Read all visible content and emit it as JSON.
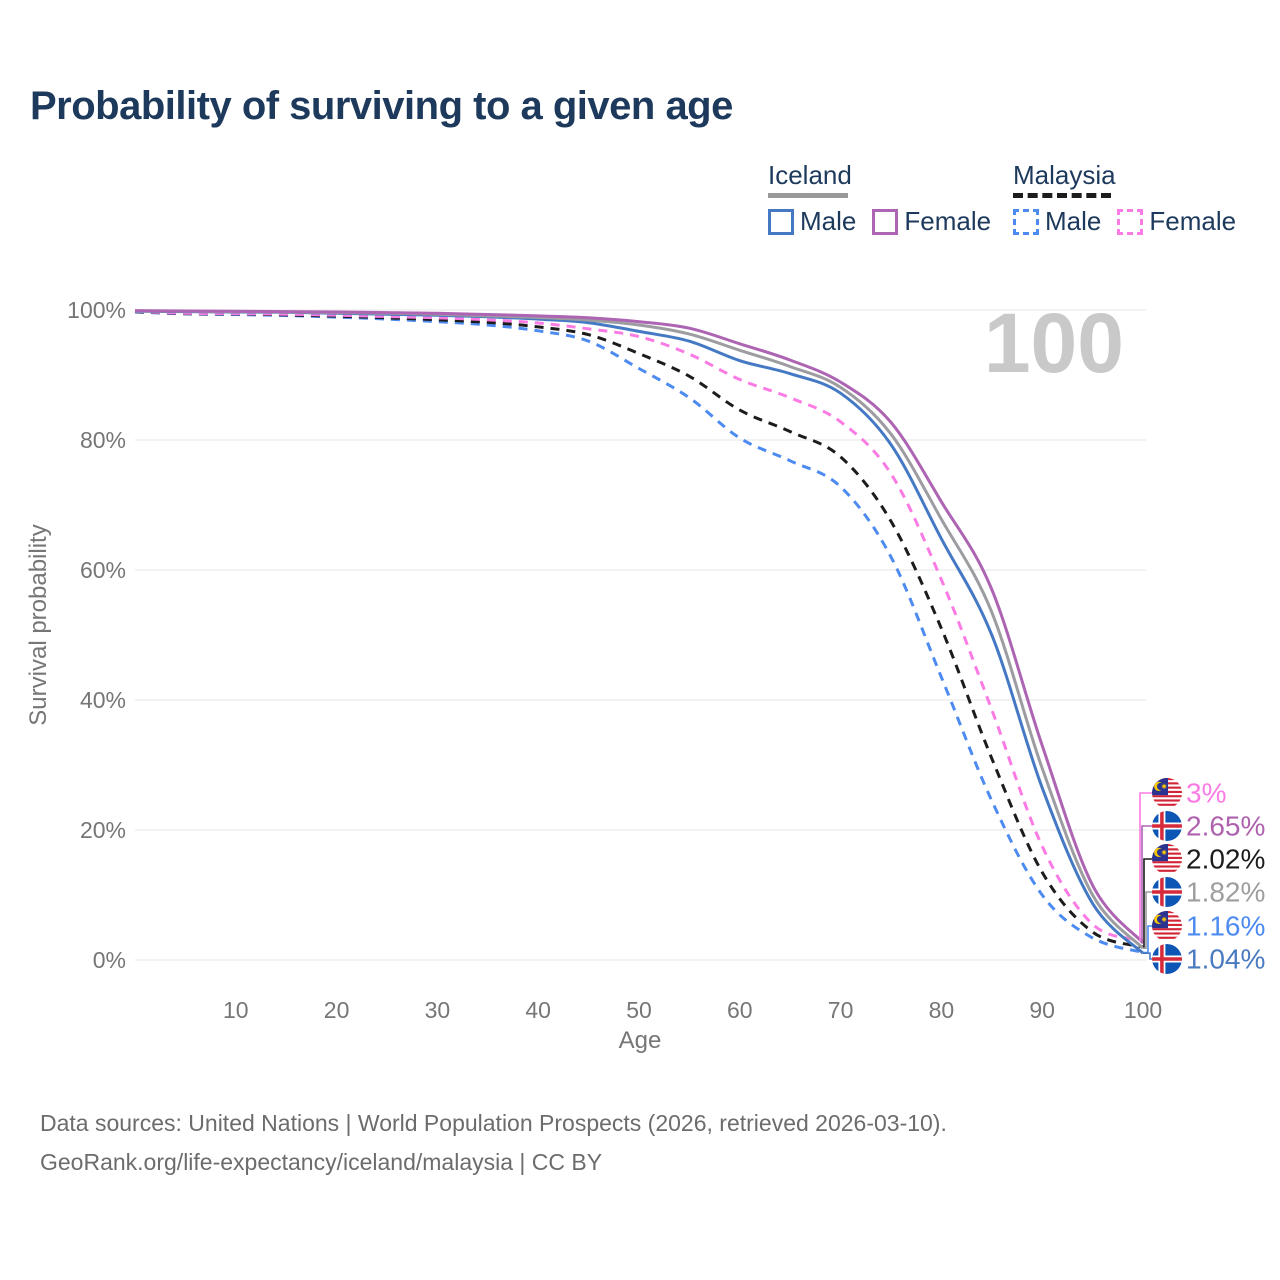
{
  "title": "Probability of surviving to a given age",
  "watermark": "100",
  "legend": {
    "groups": [
      {
        "name": "Iceland",
        "underline": "solid",
        "underline_color": "#999999",
        "items": [
          {
            "label": "Male",
            "color": "#4579c4",
            "dashed": false
          },
          {
            "label": "Female",
            "color": "#ad64b3",
            "dashed": false
          }
        ]
      },
      {
        "name": "Malaysia",
        "underline": "dashed",
        "underline_color": "#1c1c1c",
        "items": [
          {
            "label": "Male",
            "color": "#4d8bf0",
            "dashed": true
          },
          {
            "label": "Female",
            "color": "#fb7be4",
            "dashed": true
          }
        ]
      }
    ]
  },
  "chart_data": {
    "type": "line",
    "title": "Probability of surviving to a given age",
    "xlabel": "Age",
    "ylabel": "Survival probability",
    "xlim": [
      0,
      100
    ],
    "ylim": [
      0,
      100
    ],
    "grid": true,
    "xticks": [
      {
        "value": 10,
        "label": "10"
      },
      {
        "value": 20,
        "label": "20"
      },
      {
        "value": 30,
        "label": "30"
      },
      {
        "value": 40,
        "label": "40"
      },
      {
        "value": 50,
        "label": "50"
      },
      {
        "value": 60,
        "label": "60"
      },
      {
        "value": 70,
        "label": "70"
      },
      {
        "value": 80,
        "label": "80"
      },
      {
        "value": 90,
        "label": "90"
      },
      {
        "value": 100,
        "label": "100"
      }
    ],
    "yticks": [
      {
        "value": 0,
        "label": "0%"
      },
      {
        "value": 20,
        "label": "20%"
      },
      {
        "value": 40,
        "label": "40%"
      },
      {
        "value": 60,
        "label": "60%"
      },
      {
        "value": 80,
        "label": "80%"
      },
      {
        "value": 100,
        "label": "100%"
      }
    ],
    "ages": [
      0,
      5,
      10,
      15,
      20,
      25,
      30,
      35,
      40,
      45,
      50,
      55,
      60,
      65,
      70,
      75,
      80,
      85,
      90,
      95,
      100
    ],
    "series": [
      {
        "name": "Malaysia Male",
        "country": "Malaysia",
        "sex": "Male",
        "style": "dashed",
        "color": "#4d8bf0",
        "values": [
          99.7,
          99.4,
          99.3,
          99.15,
          98.9,
          98.6,
          98.2,
          97.7,
          96.8,
          95.2,
          91.0,
          86.5,
          80.3,
          76.8,
          72.8,
          62.0,
          43.5,
          24.5,
          10.0,
          3.4,
          1.16
        ],
        "label": {
          "text": "1.16%",
          "color": "#4d8bf0",
          "row": 4,
          "flag": "malaysia"
        }
      },
      {
        "name": "Malaysia Both sexes",
        "country": "Malaysia",
        "sex": "Both sexes",
        "style": "dashed",
        "color": "#1c1c1c",
        "values": [
          99.75,
          99.45,
          99.4,
          99.25,
          99.05,
          98.8,
          98.5,
          98.1,
          97.4,
          96.2,
          93.3,
          89.8,
          84.6,
          81.3,
          77.4,
          67.5,
          51.0,
          31.0,
          13.5,
          4.3,
          2.02
        ],
        "label": {
          "text": "2.02%",
          "color": "#1c1c1c",
          "row": 2,
          "flag": "malaysia"
        }
      },
      {
        "name": "Malaysia Female",
        "country": "Malaysia",
        "sex": "Female",
        "style": "dashed",
        "color": "#fb7be4",
        "values": [
          99.8,
          99.5,
          99.45,
          99.35,
          99.2,
          99.0,
          98.8,
          98.5,
          98.0,
          97.1,
          95.9,
          93.2,
          89.3,
          86.5,
          82.8,
          74.8,
          58.5,
          38.5,
          17.5,
          5.5,
          3.0
        ],
        "label": {
          "text": "3%",
          "color": "#fb7be4",
          "row": 0,
          "flag": "malaysia"
        }
      },
      {
        "name": "Iceland Male",
        "country": "Iceland",
        "sex": "Male",
        "style": "solid",
        "color": "#4579c4",
        "values": [
          99.8,
          99.75,
          99.7,
          99.65,
          99.5,
          99.35,
          99.2,
          98.95,
          98.6,
          98.05,
          96.7,
          95.2,
          92.2,
          90.2,
          87.2,
          79.3,
          64.8,
          50.0,
          26.5,
          8.7,
          1.04
        ],
        "label": {
          "text": "1.04%",
          "color": "#4a7ac0",
          "row": 5,
          "flag": "iceland"
        }
      },
      {
        "name": "Iceland Both sexes",
        "country": "Iceland",
        "sex": "Both sexes",
        "style": "solid",
        "color": "#9c9ca1",
        "values": [
          99.85,
          99.8,
          99.75,
          99.7,
          99.6,
          99.5,
          99.35,
          99.1,
          98.85,
          98.45,
          97.7,
          96.3,
          93.8,
          91.3,
          88.1,
          80.9,
          67.8,
          53.5,
          29.5,
          10.0,
          1.82
        ],
        "label": {
          "text": "1.82%",
          "color": "#9e9e9e",
          "row": 3,
          "flag": "iceland"
        }
      },
      {
        "name": "Iceland Female",
        "country": "Iceland",
        "sex": "Female",
        "style": "solid",
        "color": "#ad64b3",
        "values": [
          99.9,
          99.85,
          99.8,
          99.75,
          99.7,
          99.6,
          99.5,
          99.3,
          99.1,
          98.8,
          98.2,
          97.2,
          94.8,
          92.3,
          88.9,
          82.7,
          70.5,
          57.0,
          33.0,
          11.5,
          2.65
        ],
        "label": {
          "text": "2.65%",
          "color": "#ae62ae",
          "row": 1,
          "flag": "iceland"
        }
      }
    ]
  },
  "source": {
    "line1": "Data sources: United Nations | World Population Prospects (2026, retrieved 2026-03-10).",
    "line2": "GeoRank.org/life-expectancy/iceland/malaysia | CC BY"
  }
}
